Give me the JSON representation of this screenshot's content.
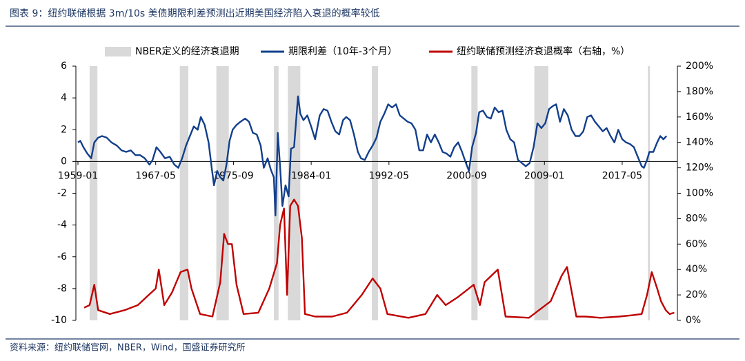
{
  "chart_data": {
    "type": "line",
    "title": "图表 9：纽约联储根据 3m/10s 美债期限利差预测出近期美国经济陷入衰退的概率较低",
    "source": "资料来源：纽约联储官网，NBER，Wind，国盛证券研究所",
    "recession_label": "NBER定义的经济衰退期",
    "recession_color": "#d9d9d9",
    "recessions": [
      {
        "start": "1960-04",
        "end": "1961-02"
      },
      {
        "start": "1969-12",
        "end": "1970-11"
      },
      {
        "start": "1973-11",
        "end": "1975-03"
      },
      {
        "start": "1980-01",
        "end": "1980-07"
      },
      {
        "start": "1981-07",
        "end": "1982-11"
      },
      {
        "start": "1990-07",
        "end": "1991-03"
      },
      {
        "start": "2001-03",
        "end": "2001-11"
      },
      {
        "start": "2007-12",
        "end": "2009-06"
      },
      {
        "start": "2020-02",
        "end": "2020-04"
      }
    ],
    "xlim": [
      "1959-01",
      "2023-04"
    ],
    "xticks": [
      "1959-01",
      "1967-05",
      "1975-09",
      "1984-01",
      "1992-05",
      "2000-09",
      "2009-01",
      "2017-05"
    ],
    "ylim": [
      -10,
      6
    ],
    "yticks": [
      -10,
      -8,
      -6,
      -4,
      -2,
      0,
      2,
      4,
      6
    ],
    "y2lim": [
      0,
      200
    ],
    "y2ticks": [
      {
        "value": 0,
        "label": "0%"
      },
      {
        "value": 20,
        "label": "20%"
      },
      {
        "value": 40,
        "label": "40%"
      },
      {
        "value": 60,
        "label": "60%"
      },
      {
        "value": 80,
        "label": "80%"
      },
      {
        "value": 100,
        "label": "100%"
      },
      {
        "value": 120,
        "label": "120%"
      },
      {
        "value": 140,
        "label": "140%"
      },
      {
        "value": 160,
        "label": "160%"
      },
      {
        "value": 180,
        "label": "180%"
      },
      {
        "value": 200,
        "label": "200%"
      }
    ],
    "series": [
      {
        "name": "期限利差（10年-3个月）",
        "color": "#123f8c",
        "axis": "y",
        "x": [
          "1959-01",
          "1959-04",
          "1959-08",
          "1960-01",
          "1960-06",
          "1960-10",
          "1961-03",
          "1961-08",
          "1962-02",
          "1962-08",
          "1963-03",
          "1963-09",
          "1964-03",
          "1964-09",
          "1965-03",
          "1965-09",
          "1966-03",
          "1966-09",
          "1967-01",
          "1967-06",
          "1967-11",
          "1968-05",
          "1968-11",
          "1969-05",
          "1969-10",
          "1970-03",
          "1970-08",
          "1971-01",
          "1971-06",
          "1971-11",
          "1972-03",
          "1972-08",
          "1973-01",
          "1973-05",
          "1973-08",
          "1973-12",
          "1974-04",
          "1974-08",
          "1974-12",
          "1975-04",
          "1975-08",
          "1976-01",
          "1976-06",
          "1976-12",
          "1977-05",
          "1977-10",
          "1978-03",
          "1978-08",
          "1978-12",
          "1979-05",
          "1979-09",
          "1980-01",
          "1980-03",
          "1980-06",
          "1980-09",
          "1980-12",
          "1981-04",
          "1981-08",
          "1981-11",
          "1982-03",
          "1982-08",
          "1982-11",
          "1983-03",
          "1983-08",
          "1984-01",
          "1984-06",
          "1984-12",
          "1985-05",
          "1985-10",
          "1986-03",
          "1986-08",
          "1987-01",
          "1987-06",
          "1987-10",
          "1988-03",
          "1988-08",
          "1989-01",
          "1989-05",
          "1989-10",
          "1990-03",
          "1990-08",
          "1991-01",
          "1991-06",
          "1991-11",
          "1992-04",
          "1992-09",
          "1993-02",
          "1993-07",
          "1993-12",
          "1994-05",
          "1994-10",
          "1995-03",
          "1995-08",
          "1996-01",
          "1996-06",
          "1996-11",
          "1997-04",
          "1997-09",
          "1998-02",
          "1998-07",
          "1998-12",
          "1999-05",
          "1999-10",
          "2000-03",
          "2000-08",
          "2000-12",
          "2001-04",
          "2001-09",
          "2002-01",
          "2002-06",
          "2002-11",
          "2003-04",
          "2003-09",
          "2004-02",
          "2004-07",
          "2004-12",
          "2005-05",
          "2005-10",
          "2006-03",
          "2006-08",
          "2007-01",
          "2007-06",
          "2007-11",
          "2008-04",
          "2008-09",
          "2009-02",
          "2009-07",
          "2009-12",
          "2010-04",
          "2010-09",
          "2011-02",
          "2011-07",
          "2011-12",
          "2012-05",
          "2012-10",
          "2013-03",
          "2013-08",
          "2014-01",
          "2014-06",
          "2014-11",
          "2015-04",
          "2015-09",
          "2016-02",
          "2016-07",
          "2016-12",
          "2017-05",
          "2017-10",
          "2018-03",
          "2018-08",
          "2019-01",
          "2019-06",
          "2019-09",
          "2020-01",
          "2020-04",
          "2020-09",
          "2021-02",
          "2021-06",
          "2021-10",
          "2022-02"
        ],
        "values": [
          1.2,
          1.3,
          0.9,
          0.5,
          0.2,
          1.2,
          1.5,
          1.6,
          1.5,
          1.2,
          1.0,
          0.7,
          0.6,
          0.7,
          0.4,
          0.4,
          0.2,
          -0.2,
          0.1,
          0.9,
          0.6,
          0.2,
          0.3,
          -0.2,
          -0.4,
          0.2,
          1.0,
          1.6,
          2.2,
          2.0,
          2.8,
          2.3,
          1.2,
          -0.4,
          -1.5,
          -0.6,
          -1.0,
          -1.2,
          -0.2,
          1.3,
          2.0,
          2.3,
          2.5,
          2.7,
          2.5,
          1.8,
          1.7,
          1.0,
          -0.4,
          0.2,
          -0.5,
          -1.0,
          -3.4,
          1.8,
          -0.3,
          -2.8,
          -1.5,
          -2.2,
          0.8,
          0.9,
          4.1,
          3.0,
          2.6,
          2.9,
          2.2,
          1.4,
          2.9,
          3.3,
          3.2,
          2.5,
          1.9,
          1.7,
          2.6,
          2.8,
          2.6,
          1.7,
          0.6,
          0.2,
          0.1,
          0.6,
          1.0,
          1.5,
          2.5,
          3.0,
          3.6,
          3.4,
          3.6,
          2.9,
          2.7,
          2.5,
          2.4,
          2.0,
          0.7,
          0.7,
          1.7,
          1.2,
          1.7,
          1.2,
          0.6,
          0.5,
          0.3,
          0.9,
          1.2,
          0.6,
          -0.1,
          -0.6,
          0.9,
          1.8,
          3.1,
          3.2,
          2.8,
          2.7,
          3.4,
          3.1,
          3.2,
          2.0,
          1.4,
          1.2,
          0.1,
          -0.1,
          -0.3,
          -0.1,
          0.9,
          2.4,
          2.1,
          2.4,
          3.3,
          3.5,
          3.6,
          2.5,
          3.3,
          2.9,
          2.0,
          1.6,
          1.6,
          1.9,
          2.8,
          2.9,
          2.5,
          2.2,
          1.9,
          2.1,
          1.6,
          1.2,
          2.0,
          1.4,
          1.2,
          1.1,
          0.9,
          0.3,
          -0.3,
          -0.4,
          0.1,
          0.6,
          0.6,
          1.2,
          1.6,
          1.4,
          1.6
        ]
      },
      {
        "name": "纽约联储预测经济衰退概率（右轴，%）",
        "color": "#c00000",
        "axis": "y2",
        "x": [
          "1959-09",
          "1960-04",
          "1960-10",
          "1961-03",
          "1962-06",
          "1964-01",
          "1965-06",
          "1966-08",
          "1967-05",
          "1967-09",
          "1968-04",
          "1969-02",
          "1970-01",
          "1970-10",
          "1971-03",
          "1972-02",
          "1973-06",
          "1974-04",
          "1974-09",
          "1975-02",
          "1975-07",
          "1976-01",
          "1976-10",
          "1978-05",
          "1979-07",
          "1980-05",
          "1980-09",
          "1981-02",
          "1981-06",
          "1981-10",
          "1982-03",
          "1982-08",
          "1983-01",
          "1983-05",
          "1984-06",
          "1986-04",
          "1987-11",
          "1989-06",
          "1990-08",
          "1991-06",
          "1992-03",
          "1994-06",
          "1996-04",
          "1997-07",
          "1998-06",
          "1999-09",
          "2001-06",
          "2002-02",
          "2002-08",
          "2004-01",
          "2004-11",
          "2007-05",
          "2009-09",
          "2010-11",
          "2011-06",
          "2012-06",
          "2013-06",
          "2015-01",
          "2017-01",
          "2018-06",
          "2019-06",
          "2020-01",
          "2020-07",
          "2021-02",
          "2021-07",
          "2022-01",
          "2022-06",
          "2022-12"
        ],
        "values": [
          10,
          12,
          28,
          8,
          5,
          8,
          12,
          20,
          25,
          40,
          12,
          22,
          38,
          40,
          25,
          5,
          3,
          30,
          68,
          60,
          60,
          28,
          5,
          6,
          25,
          45,
          75,
          88,
          20,
          90,
          95,
          90,
          65,
          5,
          3,
          3,
          6,
          20,
          33,
          25,
          5,
          2,
          5,
          20,
          12,
          18,
          28,
          12,
          30,
          40,
          3,
          2,
          15,
          35,
          42,
          3,
          3,
          2,
          3,
          4,
          5,
          20,
          38,
          25,
          15,
          8,
          5,
          6
        ]
      }
    ]
  }
}
